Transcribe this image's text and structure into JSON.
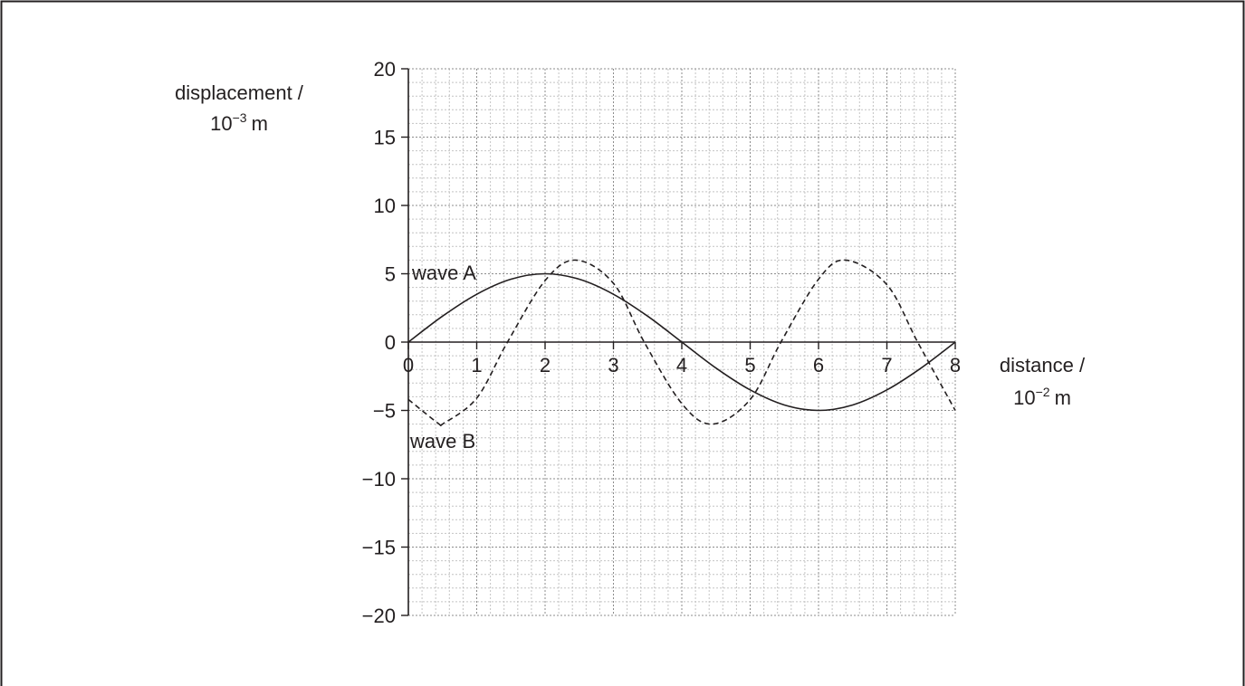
{
  "chart_data": {
    "type": "line",
    "ylabel_line1": "displacement /",
    "ylabel_line2_base": "10",
    "ylabel_line2_exp": "−3",
    "ylabel_line2_unit": "m",
    "xlabel_line1": "distance /",
    "xlabel_line2_base": "10",
    "xlabel_line2_exp": "−2",
    "xlabel_line2_unit": "m",
    "xlim": [
      0,
      8
    ],
    "ylim": [
      -20,
      20
    ],
    "x_ticks": [
      "0",
      "1",
      "2",
      "3",
      "4",
      "5",
      "6",
      "7",
      "8"
    ],
    "y_ticks": [
      "20",
      "15",
      "10",
      "5",
      "0",
      "−5",
      "−10",
      "−15",
      "−20"
    ],
    "grid": true,
    "series": [
      {
        "name": "wave A",
        "style": "solid",
        "x": [
          0,
          0.5,
          1,
          1.5,
          2,
          2.5,
          3,
          3.5,
          4,
          4.5,
          5,
          5.5,
          6,
          6.5,
          7,
          7.5,
          8
        ],
        "y": [
          0,
          1.9,
          3.5,
          4.6,
          5,
          4.6,
          3.5,
          1.9,
          0,
          -1.9,
          -3.5,
          -4.6,
          -5,
          -4.6,
          -3.5,
          -1.9,
          0
        ]
      },
      {
        "name": "wave B",
        "style": "dashed",
        "x": [
          0,
          0.45,
          0.5,
          1,
          1.45,
          2,
          2.45,
          3,
          3.45,
          4,
          4.45,
          5,
          5.45,
          6,
          6.4,
          7,
          7.45,
          8
        ],
        "y": [
          -4.2,
          -6,
          -6,
          -4.1,
          0,
          4.5,
          6,
          4.3,
          0,
          -4.5,
          -6,
          -4.2,
          0,
          4.6,
          6,
          4.2,
          0,
          -5
        ]
      }
    ]
  }
}
